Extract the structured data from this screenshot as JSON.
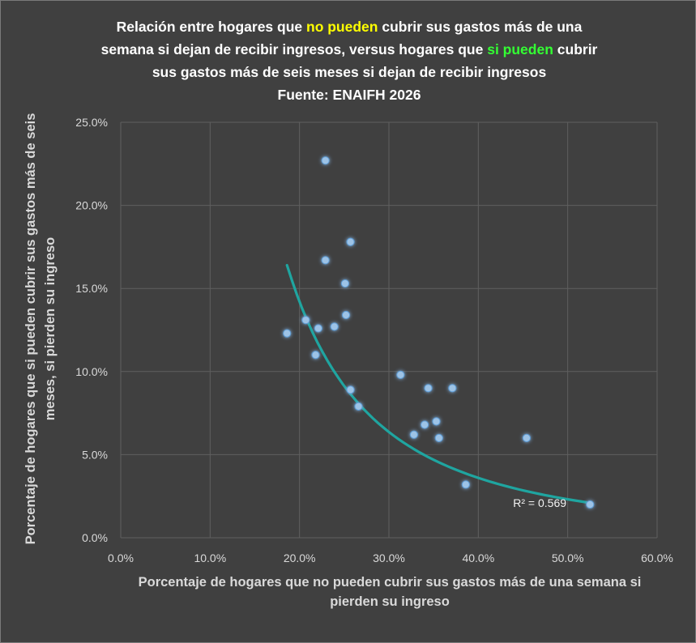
{
  "chart_data": {
    "type": "scatter",
    "title_lines": [
      {
        "segments": [
          {
            "text": "Relación entre hogares que ",
            "style": "normal"
          },
          {
            "text": "no pueden",
            "style": "yellow"
          },
          {
            "text": " cubrir sus gastos más de una",
            "style": "normal"
          }
        ]
      },
      {
        "segments": [
          {
            "text": "semana si dejan de recibir ingresos, versus hogares que ",
            "style": "normal"
          },
          {
            "text": "si pueden",
            "style": "green"
          },
          {
            "text": " cubrir",
            "style": "normal"
          }
        ]
      },
      {
        "segments": [
          {
            "text": "sus gastos más de seis meses si dejan de recibir ingresos",
            "style": "normal"
          }
        ]
      },
      {
        "segments": [
          {
            "text": "Fuente: ENAIFH 2026",
            "style": "normal"
          }
        ]
      }
    ],
    "xlabel": "Porcentaje de hogares que no pueden cubrir sus gastos más de una semana si pierden su ingreso",
    "ylabel": "Porcentaje de hogares que si pueden cubrir sus gastos más de seis meses, si pierden su ingreso",
    "xlim": [
      0,
      0.6
    ],
    "ylim": [
      0,
      0.25
    ],
    "x_ticks": [
      0,
      0.1,
      0.2,
      0.3,
      0.4,
      0.5,
      0.6
    ],
    "x_tick_labels": [
      "0.0%",
      "10.0%",
      "20.0%",
      "30.0%",
      "40.0%",
      "50.0%",
      "60.0%"
    ],
    "y_ticks": [
      0,
      0.05,
      0.1,
      0.15,
      0.2,
      0.25
    ],
    "y_tick_labels": [
      "0.0%",
      "5.0%",
      "10.0%",
      "15.0%",
      "20.0%",
      "25.0%"
    ],
    "grid": true,
    "points": [
      {
        "x": 0.186,
        "y": 0.123
      },
      {
        "x": 0.207,
        "y": 0.131
      },
      {
        "x": 0.218,
        "y": 0.11
      },
      {
        "x": 0.221,
        "y": 0.126
      },
      {
        "x": 0.229,
        "y": 0.227
      },
      {
        "x": 0.229,
        "y": 0.167
      },
      {
        "x": 0.239,
        "y": 0.127
      },
      {
        "x": 0.251,
        "y": 0.153
      },
      {
        "x": 0.252,
        "y": 0.134
      },
      {
        "x": 0.257,
        "y": 0.178
      },
      {
        "x": 0.257,
        "y": 0.089
      },
      {
        "x": 0.266,
        "y": 0.079
      },
      {
        "x": 0.313,
        "y": 0.098
      },
      {
        "x": 0.328,
        "y": 0.062
      },
      {
        "x": 0.34,
        "y": 0.068
      },
      {
        "x": 0.344,
        "y": 0.09
      },
      {
        "x": 0.353,
        "y": 0.07
      },
      {
        "x": 0.356,
        "y": 0.06
      },
      {
        "x": 0.371,
        "y": 0.09
      },
      {
        "x": 0.386,
        "y": 0.032
      },
      {
        "x": 0.454,
        "y": 0.06
      },
      {
        "x": 0.525,
        "y": 0.02
      }
    ],
    "trendline": {
      "type": "power",
      "x_start": 0.186,
      "y_start": 0.164,
      "x_end": 0.525,
      "y_end": 0.021
    },
    "r2_label": "R² = 0.569",
    "colors": {
      "background": "#404040",
      "grid": "#5f5f5f",
      "point": "#9dc3e6",
      "point_glow": "#5b9bd5",
      "trendline": "#1fa5a0"
    }
  }
}
